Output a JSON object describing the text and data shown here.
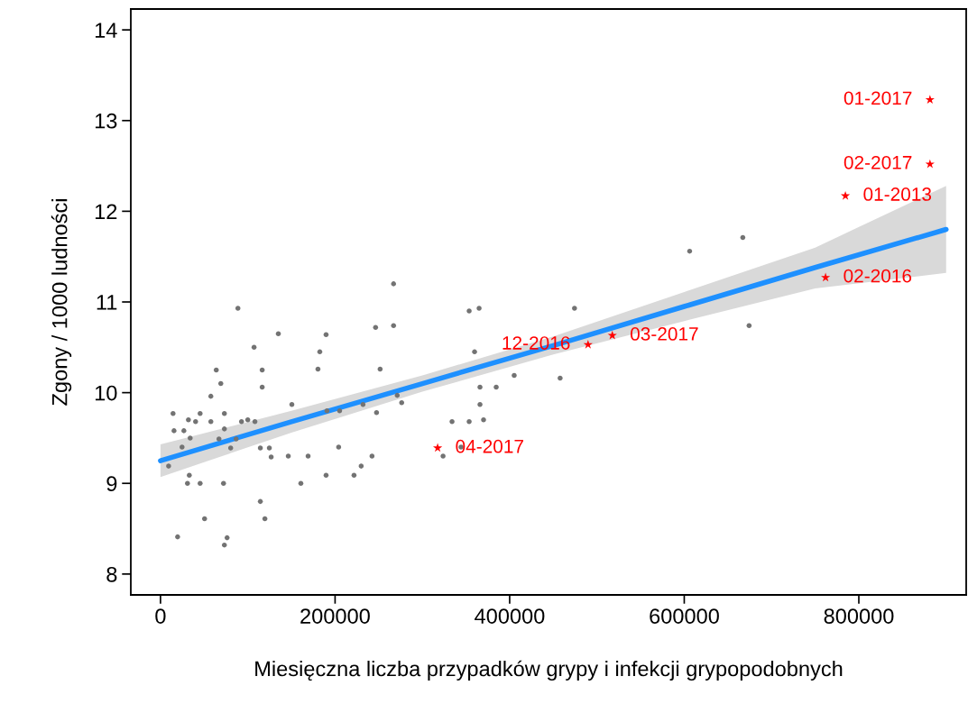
{
  "chart_data": {
    "type": "scatter",
    "xlabel": "Miesięczna liczba przypadków grypy i infekcji grypopodobnych",
    "ylabel": "Zgony / 1000 ludności",
    "xlim": [
      -34000,
      923000
    ],
    "ylim": [
      7.77,
      14.23
    ],
    "xticks": [
      0,
      200000,
      400000,
      600000,
      800000
    ],
    "yticks": [
      8,
      9,
      10,
      11,
      12,
      13,
      14
    ],
    "grid": false,
    "legend": false,
    "series": [
      {
        "type": "line",
        "color": "#1e90ff",
        "x": [
          0,
          150000,
          300000,
          450000,
          600000,
          750000,
          900000
        ],
        "values": [
          9.25,
          9.68,
          10.1,
          10.52,
          10.95,
          11.38,
          11.8
        ],
        "lower": [
          9.07,
          9.56,
          10.01,
          10.42,
          10.79,
          11.15,
          11.32
        ],
        "upper": [
          9.43,
          9.8,
          10.19,
          10.62,
          11.11,
          11.6,
          12.28
        ]
      },
      {
        "color": "#737373",
        "marker": "circle",
        "x": [
          88700,
          135000,
          107200,
          63900,
          116500,
          69100,
          116500,
          57700,
          150500,
          14400,
          45400,
          73200,
          32000,
          40200,
          57700,
          92800,
          100000,
          108200,
          15500,
          26800,
          73200,
          34000,
          67000,
          86600,
          24700,
          80400,
          114400,
          124700,
          126800,
          146400,
          169100,
          9300,
          33000,
          30900,
          45400,
          72200,
          160800,
          114400,
          50500,
          119600,
          19600,
          76300,
          73200,
          267000,
          353600,
          365000,
          474300,
          246400,
          267000,
          189700,
          182500,
          359800,
          180400,
          251600,
          405200,
          457800,
          366000,
          384600,
          271200,
          276300,
          366000,
          232000,
          190700,
          205200,
          247500,
          334000,
          353600,
          370100,
          204100,
          344300,
          242300,
          323700,
          229900,
          189700,
          221700,
          606200,
          667100,
          674300
        ],
        "values": [
          10.93,
          10.65,
          10.5,
          10.25,
          10.25,
          10.1,
          10.06,
          9.96,
          9.87,
          9.77,
          9.77,
          9.77,
          9.7,
          9.68,
          9.68,
          9.68,
          9.7,
          9.68,
          9.58,
          9.58,
          9.6,
          9.5,
          9.49,
          9.49,
          9.4,
          9.39,
          9.39,
          9.39,
          9.29,
          9.3,
          9.3,
          9.19,
          9.09,
          9.0,
          9.0,
          9.0,
          9.0,
          8.8,
          8.61,
          8.61,
          8.41,
          8.4,
          8.32,
          11.2,
          10.9,
          10.93,
          10.93,
          10.72,
          10.74,
          10.64,
          10.45,
          10.45,
          10.26,
          10.26,
          10.19,
          10.16,
          10.06,
          10.06,
          9.97,
          9.89,
          9.87,
          9.87,
          9.8,
          9.8,
          9.78,
          9.68,
          9.68,
          9.7,
          9.4,
          9.4,
          9.3,
          9.3,
          9.19,
          9.09,
          9.09,
          11.56,
          11.71,
          10.74
        ]
      },
      {
        "color": "#ff0000",
        "marker": "star",
        "x": [
          881500,
          881500,
          784600,
          761900,
          517600,
          489800,
          317500
        ],
        "values": [
          13.23,
          12.52,
          12.17,
          11.27,
          10.63,
          10.53,
          9.39
        ],
        "value_labels": [
          "01-2017",
          "02-2017",
          "01-2013",
          "02-2016",
          "03-2017",
          "12-2016",
          "04-2017"
        ]
      }
    ]
  }
}
